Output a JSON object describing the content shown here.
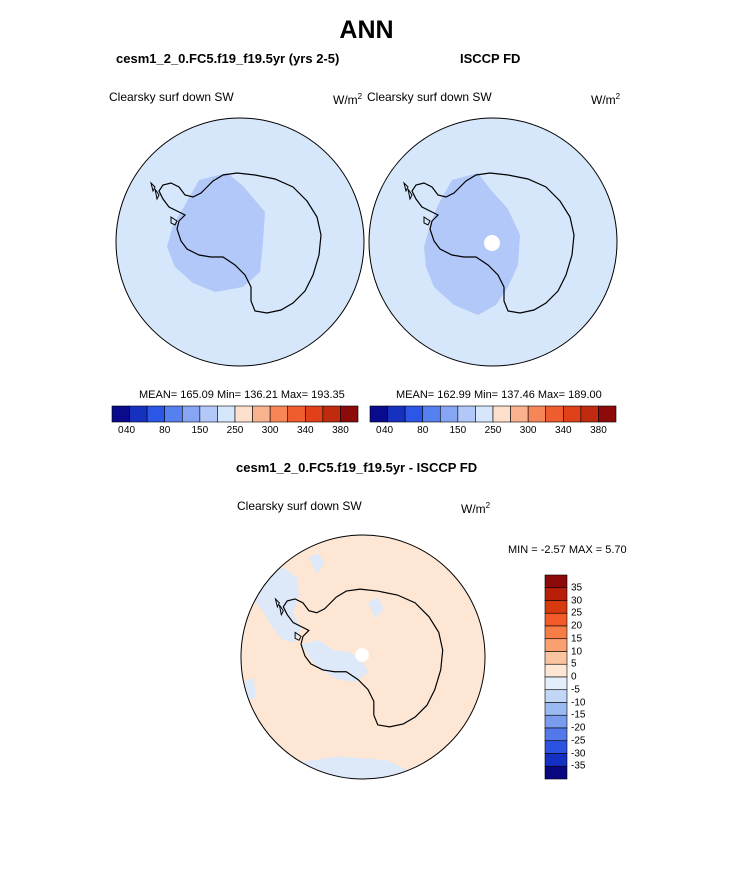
{
  "figure": {
    "title": "ANN",
    "top_left": {
      "subtitle": "cesm1_2_0.FC5.f19_f19.5yr (yrs 2-5)",
      "variable": "Clearsky surf down SW",
      "units": "W/m",
      "units_sup": "2",
      "stats": "MEAN= 165.09  Min= 136.21  Max= 193.35"
    },
    "top_right": {
      "subtitle": "ISCCP FD",
      "variable": "Clearsky surf down SW",
      "units": "W/m",
      "units_sup": "2",
      "stats": "MEAN= 162.99  Min= 137.46  Max= 189.00"
    },
    "bottom": {
      "subtitle": "cesm1_2_0.FC5.f19_f19.5yr - ISCCP FD",
      "variable": "Clearsky surf down SW",
      "units": "W/m",
      "units_sup": "2",
      "stats": "MIN =  -2.57 MAX =   5.70"
    }
  },
  "colorbar_top": {
    "colors": [
      "#0a0a8c",
      "#1630c0",
      "#2c57e6",
      "#5680f0",
      "#86a6f4",
      "#b2c8f8",
      "#d6e6fb",
      "#fde0cc",
      "#f8b38e",
      "#f68658",
      "#ef5c2e",
      "#e0401a",
      "#c02a0e",
      "#8c0a0a"
    ],
    "ticks": [
      "0",
      "40",
      "80",
      "150",
      "250",
      "300",
      "340",
      "380"
    ]
  },
  "colorbar_diff": {
    "colors": [
      "#8c0a0a",
      "#b81e08",
      "#d83a10",
      "#f25a28",
      "#f77d46",
      "#f8a070",
      "#fbc4a0",
      "#fde6d4",
      "#e4eefa",
      "#c2d6f6",
      "#9cbaf2",
      "#7a9cee",
      "#5278ea",
      "#2c52e2",
      "#1430c2",
      "#080880"
    ],
    "ticks": [
      "35",
      "30",
      "25",
      "20",
      "15",
      "10",
      "5",
      "0",
      "-5",
      "-10",
      "-15",
      "-20",
      "-25",
      "-30",
      "-35"
    ]
  }
}
